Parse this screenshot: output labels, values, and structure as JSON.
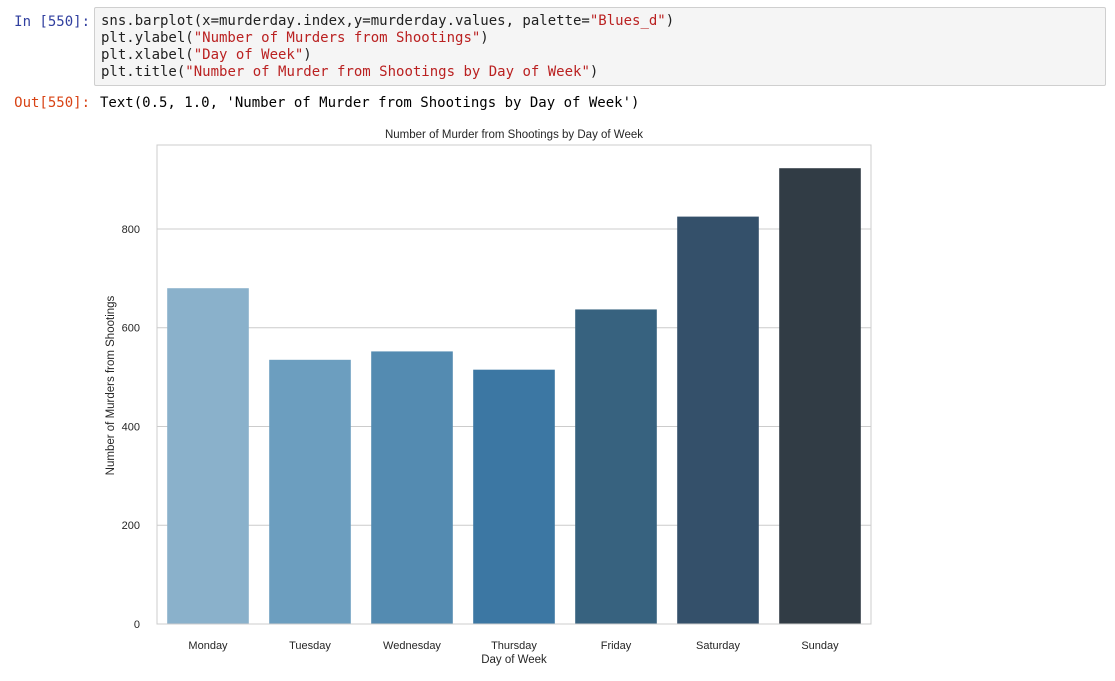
{
  "cell": {
    "in_prompt": "In [550]:",
    "out_prompt": "Out[550]:",
    "code_lines": [
      [
        {
          "t": "sns.barplot(x=murderday.index,y=murderday.values, palette=",
          "s": false
        },
        {
          "t": "\"Blues_d\"",
          "s": true
        },
        {
          "t": ")",
          "s": false
        }
      ],
      [
        {
          "t": "plt.ylabel(",
          "s": false
        },
        {
          "t": "\"Number of Murders from Shootings\"",
          "s": true
        },
        {
          "t": ")",
          "s": false
        }
      ],
      [
        {
          "t": "plt.xlabel(",
          "s": false
        },
        {
          "t": "\"Day of Week\"",
          "s": true
        },
        {
          "t": ")",
          "s": false
        }
      ],
      [
        {
          "t": "plt.title(",
          "s": false
        },
        {
          "t": "\"Number of Murder from Shootings by Day of Week\"",
          "s": true
        },
        {
          "t": ")",
          "s": false
        }
      ]
    ],
    "output_text": "Text(0.5, 1.0, 'Number of Murder from Shootings by Day of Week')"
  },
  "chart_data": {
    "type": "bar",
    "title": "Number of Murder from Shootings by Day of Week",
    "xlabel": "Day of Week",
    "ylabel": "Number of Murders from Shootings",
    "categories": [
      "Monday",
      "Tuesday",
      "Wednesday",
      "Thursday",
      "Friday",
      "Saturday",
      "Sunday"
    ],
    "values": [
      680,
      535,
      552,
      515,
      637,
      825,
      923
    ],
    "colors": [
      "#8ab1cb",
      "#6c9ebf",
      "#548bb1",
      "#3c77a3",
      "#37627f",
      "#34506a",
      "#313c45"
    ],
    "ylim": [
      0,
      970
    ],
    "yticks": [
      0,
      200,
      400,
      600,
      800
    ],
    "grid": true,
    "legend": "none"
  }
}
